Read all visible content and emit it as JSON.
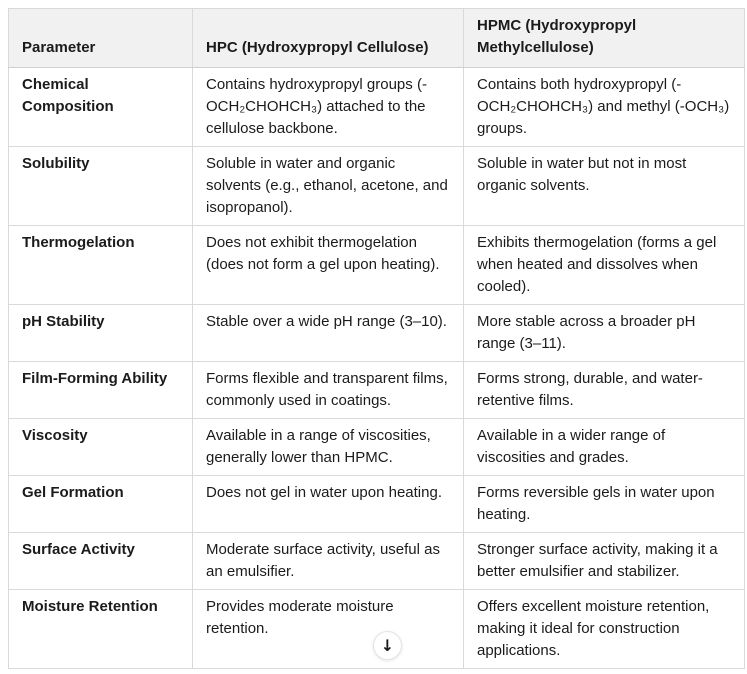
{
  "table": {
    "headers": {
      "parameter": "Parameter",
      "hpc": "HPC (Hydroxypropyl Cellulose)",
      "hpmc": "HPMC (Hydroxypropyl Methylcellulose)"
    },
    "rows": [
      {
        "parameter": "Chemical Composition",
        "hpc": "Contains hydroxypropyl groups (-OCH₂CHOHCH₃) attached to the cellulose backbone.",
        "hpmc": "Contains both hydroxypropyl (-OCH₂CHOHCH₃) and methyl (-OCH₃) groups."
      },
      {
        "parameter": "Solubility",
        "hpc": "Soluble in water and organic solvents (e.g., ethanol, acetone, and isopropanol).",
        "hpmc": "Soluble in water but not in most organic solvents."
      },
      {
        "parameter": "Thermogelation",
        "hpc": "Does not exhibit thermogelation (does not form a gel upon heating).",
        "hpmc": "Exhibits thermogelation (forms a gel when heated and dissolves when cooled)."
      },
      {
        "parameter": "pH Stability",
        "hpc": "Stable over a wide pH range (3–10).",
        "hpmc": "More stable across a broader pH range (3–11)."
      },
      {
        "parameter": "Film-Forming Ability",
        "hpc": "Forms flexible and transparent films, commonly used in coatings.",
        "hpmc": "Forms strong, durable, and water-retentive films."
      },
      {
        "parameter": "Viscosity",
        "hpc": "Available in a range of viscosities, generally lower than HPMC.",
        "hpmc": "Available in a wider range of viscosities and grades."
      },
      {
        "parameter": "Gel Formation",
        "hpc": "Does not gel in water upon heating.",
        "hpmc": "Forms reversible gels in water upon heating."
      },
      {
        "parameter": "Surface Activity",
        "hpc": "Moderate surface activity, useful as an emulsifier.",
        "hpmc": "Stronger surface activity, making it a better emulsifier and stabilizer."
      },
      {
        "parameter": "Moisture Retention",
        "hpc": "Provides moderate moisture retention.",
        "hpmc": "Offers excellent moisture retention, making it ideal for construction applications."
      }
    ]
  },
  "scroll_button": {
    "glyph": "↓"
  },
  "colors": {
    "header_bg": "#f1f1f1",
    "border": "#d9d9d9",
    "text": "#1b1b1b",
    "page_bg": "#ffffff"
  }
}
